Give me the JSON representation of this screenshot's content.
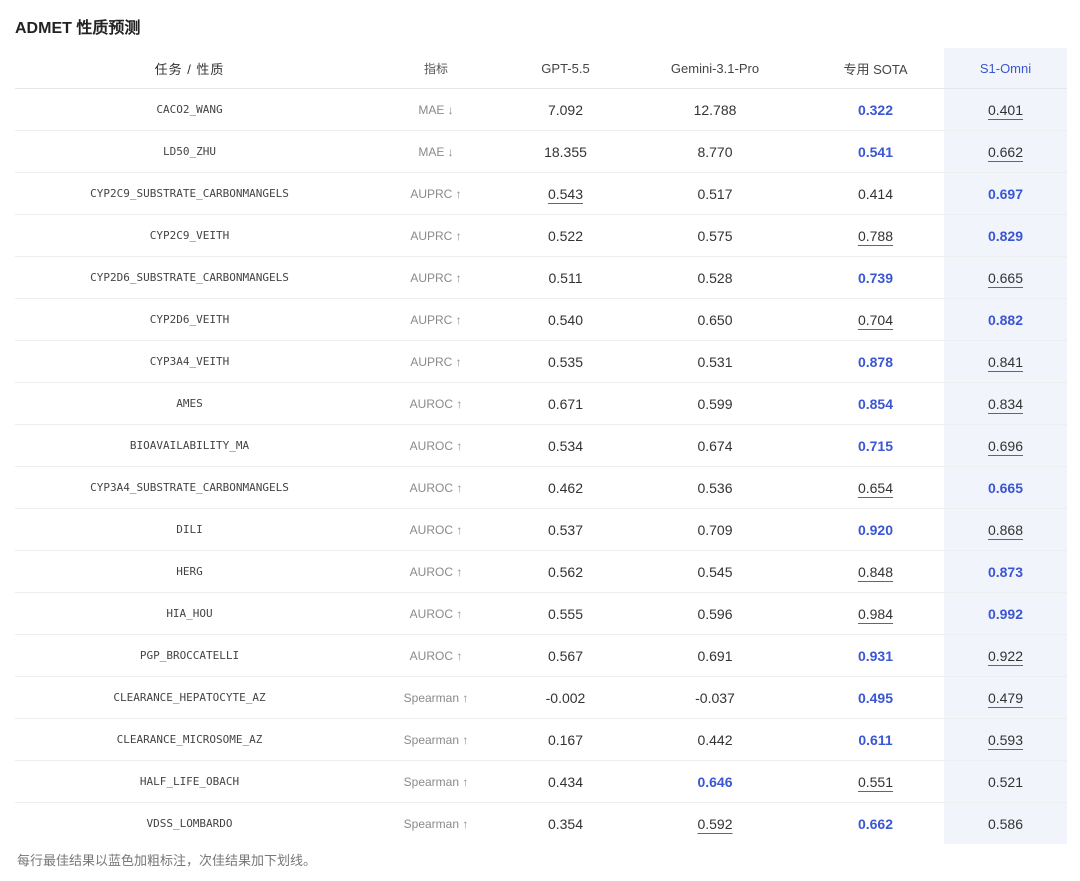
{
  "title": "ADMET 性质预测",
  "headers": {
    "task": "任务 / 性质",
    "metric": "指标",
    "gpt": "GPT-5.5",
    "gemini": "Gemini-3.1-Pro",
    "sota": "专用 SOTA",
    "s1": "S1-Omni"
  },
  "highlight_color": "#3a56d4",
  "rows": [
    {
      "task": "CACO2_WANG",
      "metric": "MAE ↓",
      "gpt": "7.092",
      "gemini": "12.788",
      "sota": "0.322",
      "s1": "0.401",
      "best": "sota",
      "second": "s1"
    },
    {
      "task": "LD50_ZHU",
      "metric": "MAE ↓",
      "gpt": "18.355",
      "gemini": "8.770",
      "sota": "0.541",
      "s1": "0.662",
      "best": "sota",
      "second": "s1"
    },
    {
      "task": "CYP2C9_SUBSTRATE_CARBONMANGELS",
      "metric": "AUPRC ↑",
      "gpt": "0.543",
      "gemini": "0.517",
      "sota": "0.414",
      "s1": "0.697",
      "best": "s1",
      "second": "gpt"
    },
    {
      "task": "CYP2C9_VEITH",
      "metric": "AUPRC ↑",
      "gpt": "0.522",
      "gemini": "0.575",
      "sota": "0.788",
      "s1": "0.829",
      "best": "s1",
      "second": "sota"
    },
    {
      "task": "CYP2D6_SUBSTRATE_CARBONMANGELS",
      "metric": "AUPRC ↑",
      "gpt": "0.511",
      "gemini": "0.528",
      "sota": "0.739",
      "s1": "0.665",
      "best": "sota",
      "second": "s1"
    },
    {
      "task": "CYP2D6_VEITH",
      "metric": "AUPRC ↑",
      "gpt": "0.540",
      "gemini": "0.650",
      "sota": "0.704",
      "s1": "0.882",
      "best": "s1",
      "second": "sota"
    },
    {
      "task": "CYP3A4_VEITH",
      "metric": "AUPRC ↑",
      "gpt": "0.535",
      "gemini": "0.531",
      "sota": "0.878",
      "s1": "0.841",
      "best": "sota",
      "second": "s1"
    },
    {
      "task": "AMES",
      "metric": "AUROC ↑",
      "gpt": "0.671",
      "gemini": "0.599",
      "sota": "0.854",
      "s1": "0.834",
      "best": "sota",
      "second": "s1"
    },
    {
      "task": "BIOAVAILABILITY_MA",
      "metric": "AUROC ↑",
      "gpt": "0.534",
      "gemini": "0.674",
      "sota": "0.715",
      "s1": "0.696",
      "best": "sota",
      "second": "s1"
    },
    {
      "task": "CYP3A4_SUBSTRATE_CARBONMANGELS",
      "metric": "AUROC ↑",
      "gpt": "0.462",
      "gemini": "0.536",
      "sota": "0.654",
      "s1": "0.665",
      "best": "s1",
      "second": "sota"
    },
    {
      "task": "DILI",
      "metric": "AUROC ↑",
      "gpt": "0.537",
      "gemini": "0.709",
      "sota": "0.920",
      "s1": "0.868",
      "best": "sota",
      "second": "s1"
    },
    {
      "task": "HERG",
      "metric": "AUROC ↑",
      "gpt": "0.562",
      "gemini": "0.545",
      "sota": "0.848",
      "s1": "0.873",
      "best": "s1",
      "second": "sota"
    },
    {
      "task": "HIA_HOU",
      "metric": "AUROC ↑",
      "gpt": "0.555",
      "gemini": "0.596",
      "sota": "0.984",
      "s1": "0.992",
      "best": "s1",
      "second": "sota"
    },
    {
      "task": "PGP_BROCCATELLI",
      "metric": "AUROC ↑",
      "gpt": "0.567",
      "gemini": "0.691",
      "sota": "0.931",
      "s1": "0.922",
      "best": "sota",
      "second": "s1"
    },
    {
      "task": "CLEARANCE_HEPATOCYTE_AZ",
      "metric": "Spearman ↑",
      "gpt": "-0.002",
      "gemini": "-0.037",
      "sota": "0.495",
      "s1": "0.479",
      "best": "sota",
      "second": "s1"
    },
    {
      "task": "CLEARANCE_MICROSOME_AZ",
      "metric": "Spearman ↑",
      "gpt": "0.167",
      "gemini": "0.442",
      "sota": "0.611",
      "s1": "0.593",
      "best": "sota",
      "second": "s1"
    },
    {
      "task": "HALF_LIFE_OBACH",
      "metric": "Spearman ↑",
      "gpt": "0.434",
      "gemini": "0.646",
      "sota": "0.551",
      "s1": "0.521",
      "best": "gemini",
      "second": "sota"
    },
    {
      "task": "VDSS_LOMBARDO",
      "metric": "Spearman ↑",
      "gpt": "0.354",
      "gemini": "0.592",
      "sota": "0.662",
      "s1": "0.586",
      "best": "sota",
      "second": "gemini"
    }
  ],
  "footnote": "每行最佳结果以蓝色加粗标注，次佳结果加下划线。"
}
